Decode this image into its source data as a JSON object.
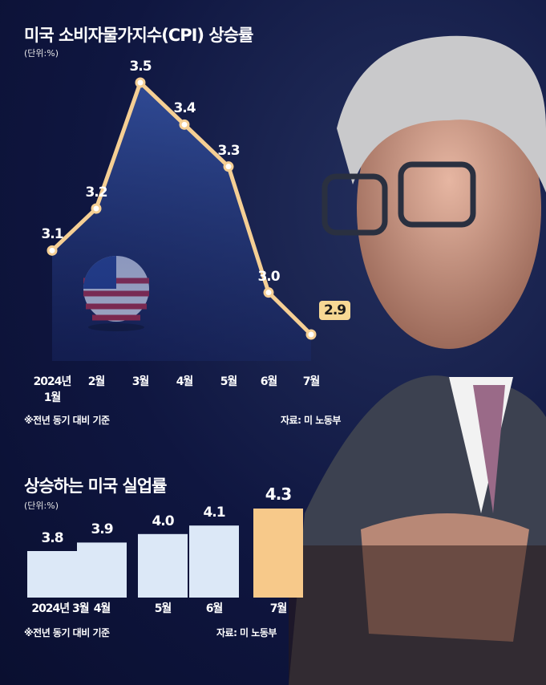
{
  "chart_data": [
    {
      "type": "line",
      "title": "미국 소비자물가지수(CPI) 상승률",
      "subtitle": "(단위:%)",
      "categories": [
        "2024년 1월",
        "2월",
        "3월",
        "4월",
        "5월",
        "6월",
        "7월"
      ],
      "values": [
        3.1,
        3.2,
        3.5,
        3.4,
        3.3,
        3.0,
        2.9
      ],
      "value_labels": [
        "3.1",
        "3.2",
        "3.5",
        "3.4",
        "3.3",
        "3.0",
        "2.9"
      ],
      "color": "#f5cf94",
      "note": "※전년 동기 대비 기준",
      "source": "자료: 미 노동부"
    },
    {
      "type": "bar",
      "title": "상승하는 미국 실업률",
      "subtitle": "(단위:%)",
      "categories": [
        "2024년 3월",
        "4월",
        "5월",
        "6월",
        "7월"
      ],
      "values": [
        3.8,
        3.9,
        4.0,
        4.1,
        4.3
      ],
      "value_labels": [
        "3.8",
        "3.9",
        "4.0",
        "4.1",
        "4.3"
      ],
      "colors": [
        "#dce8f7",
        "#dce8f7",
        "#dce8f7",
        "#dce8f7",
        "#f7c98a"
      ],
      "note": "※전년 동기 대비 기준",
      "source": "자료: 미 노동부"
    }
  ]
}
